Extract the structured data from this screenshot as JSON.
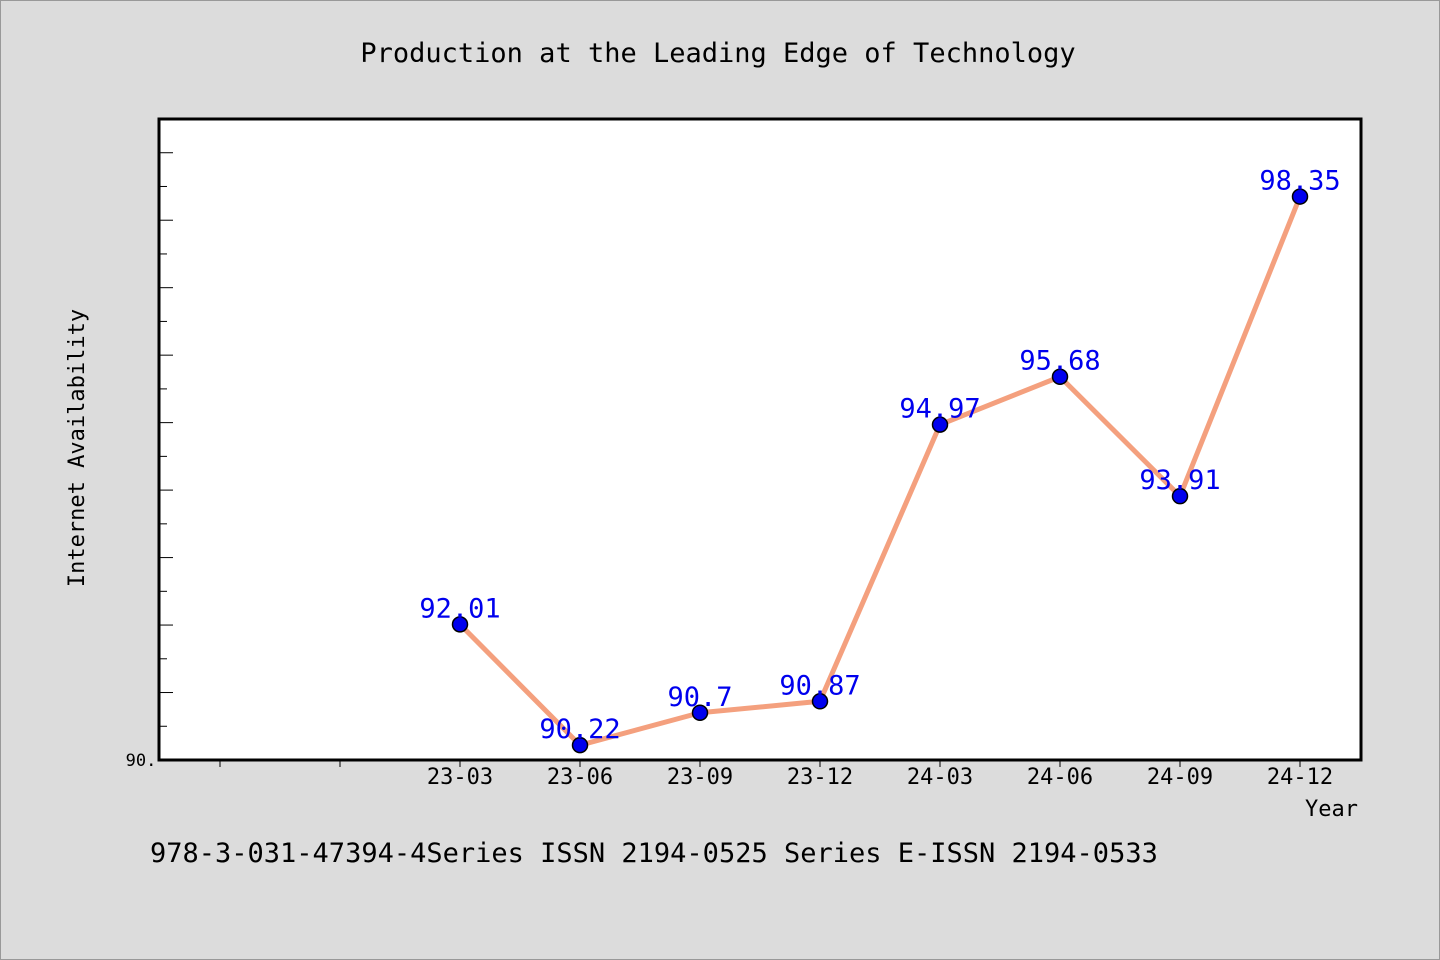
{
  "chart_data": {
    "type": "line",
    "title": "Production at the Leading Edge of Technology",
    "xlabel": "Year",
    "ylabel": "Internet Availability",
    "categories": [
      "23-03",
      "23-06",
      "23-09",
      "23-12",
      "24-03",
      "24-06",
      "24-09",
      "24-12"
    ],
    "series": [
      {
        "values": [
          92.01,
          90.22,
          90.7,
          90.87,
          94.97,
          95.68,
          93.91,
          98.35
        ],
        "data_labels": [
          "92.01",
          "90.22",
          "90.7",
          "90.87",
          "94.97",
          "95.68",
          "93.91",
          "98.35"
        ]
      }
    ],
    "y_tick_label": "90.",
    "ylim": [
      90,
      99.5
    ],
    "grid": false,
    "legend": "none",
    "colors": {
      "line": "#f4a07e",
      "marker": "#0000ee",
      "label": "#0000ee",
      "plot_background": "#ffffff",
      "page_background": "#dcdcdc"
    }
  },
  "footer_text": "978-3-031-47394-4Series ISSN 2194-0525 Series E-ISSN 2194-0533"
}
